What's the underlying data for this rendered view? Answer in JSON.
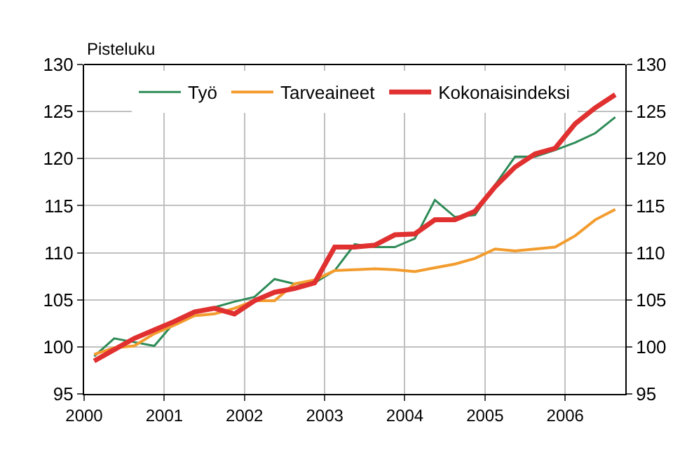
{
  "chart_data": {
    "type": "line",
    "ylabel": "Pisteluku",
    "x": [
      2000.125,
      2000.375,
      2000.625,
      2000.875,
      2001.125,
      2001.375,
      2001.625,
      2001.875,
      2002.125,
      2002.375,
      2002.625,
      2002.875,
      2003.125,
      2003.375,
      2003.625,
      2003.875,
      2004.125,
      2004.375,
      2004.625,
      2004.875,
      2005.125,
      2005.375,
      2005.625,
      2005.875,
      2006.125,
      2006.375,
      2006.625
    ],
    "series": [
      {
        "name": "Työ",
        "color": "#2e8b57",
        "values": [
          99.0,
          100.9,
          100.5,
          100.1,
          102.6,
          103.8,
          104.2,
          104.8,
          105.3,
          107.2,
          106.7,
          106.8,
          108.1,
          110.9,
          110.6,
          110.6,
          111.5,
          115.6,
          113.8,
          114.0,
          117.2,
          120.2,
          120.2,
          120.9,
          121.7,
          122.7,
          124.4
        ]
      },
      {
        "name": "Tarveaineet",
        "color": "#f39c2e",
        "values": [
          99.2,
          99.9,
          100.1,
          101.4,
          102.3,
          103.3,
          103.5,
          104.1,
          104.9,
          104.9,
          106.7,
          107.1,
          108.1,
          108.2,
          108.3,
          108.2,
          108.0,
          108.4,
          108.8,
          109.4,
          110.4,
          110.2,
          110.4,
          110.6,
          111.8,
          113.5,
          114.6
        ]
      },
      {
        "name": "Kokonaisindeksi",
        "color": "#e03030",
        "values": [
          98.5,
          99.7,
          100.9,
          101.8,
          102.7,
          103.7,
          104.1,
          103.5,
          104.9,
          105.8,
          106.2,
          106.8,
          110.6,
          110.6,
          110.8,
          111.9,
          112.0,
          113.5,
          113.5,
          114.4,
          117.0,
          119.1,
          120.5,
          121.1,
          123.7,
          125.4,
          126.8
        ]
      }
    ],
    "xlim": [
      2000,
      2006.75
    ],
    "xticks": [
      2000,
      2001,
      2002,
      2003,
      2004,
      2005,
      2006
    ],
    "ylim": [
      95,
      130
    ],
    "yticks": [
      95,
      100,
      105,
      110,
      115,
      120,
      125,
      130
    ],
    "y2lim": [
      95,
      130
    ],
    "y2ticks": [
      95,
      100,
      105,
      110,
      115,
      120,
      125,
      130
    ],
    "grid": true,
    "legend": "top",
    "marker": "none",
    "line_style": "solid"
  }
}
